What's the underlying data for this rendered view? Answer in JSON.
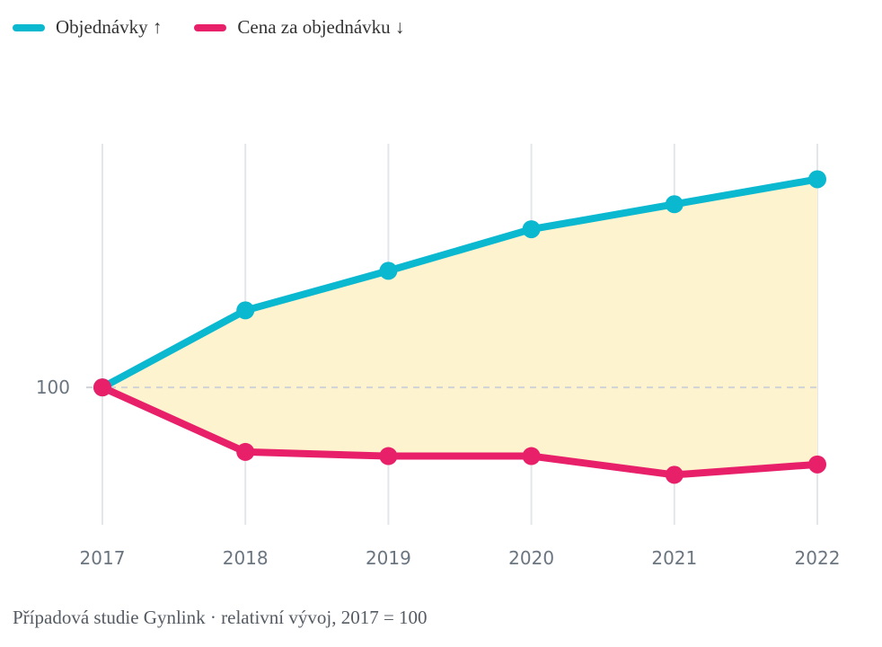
{
  "legend": {
    "items": [
      {
        "label": "Objednávky ↑",
        "color": "#0ab8d0"
      },
      {
        "label": "Cena za objednávku ↓",
        "color": "#e8206a"
      }
    ]
  },
  "caption": "Případová studie Gynlink · relativní vývoj, 2017 = 100",
  "chart_data": {
    "type": "line",
    "categories": [
      "2017",
      "2018",
      "2019",
      "2020",
      "2021",
      "2022"
    ],
    "series": [
      {
        "name": "Objednávky ↑",
        "color": "#0ab8d0",
        "values": [
          100,
          137,
          156,
          176,
          188,
          200
        ]
      },
      {
        "name": "Cena za objednávku ↓",
        "color": "#e8206a",
        "values": [
          100,
          69,
          67,
          67,
          58,
          63
        ]
      }
    ],
    "reference_line": {
      "value": 100,
      "label": "100"
    },
    "fill_between_color": "#fdf3cf",
    "ylim": [
      34,
      230
    ],
    "grid": "vertical"
  }
}
